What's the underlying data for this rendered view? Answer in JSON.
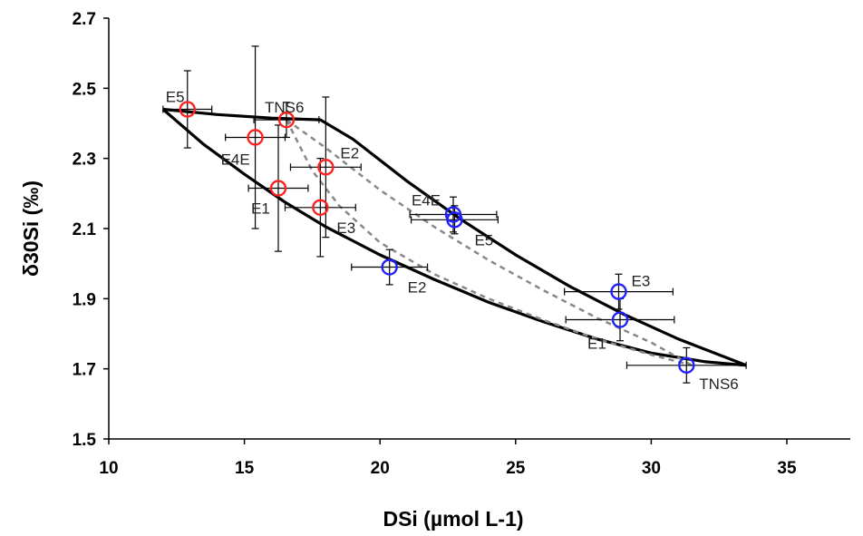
{
  "chart_data": {
    "type": "scatter",
    "xlabel": "DSi (µmol L-1)",
    "ylabel": "δ30Si (‰)",
    "xlim": [
      10,
      35
    ],
    "ylim": [
      1.5,
      2.7
    ],
    "xticks": [
      10,
      15,
      20,
      25,
      30,
      35
    ],
    "yticks": [
      1.5,
      1.7,
      1.9,
      2.1,
      2.3,
      2.5,
      2.7
    ],
    "grid": false,
    "series": [
      {
        "color": "#ff2020",
        "points": [
          {
            "label": "E5",
            "x": 12.9,
            "y": 2.44,
            "xerr": 0.9,
            "yerr": 0.11
          },
          {
            "label": "TNS6",
            "x": 16.55,
            "y": 2.41,
            "xerr": 1.2,
            "yerr": 0.05
          },
          {
            "label": "E4E",
            "x": 15.4,
            "y": 2.36,
            "xerr": 1.1,
            "yerr": 0.26
          },
          {
            "label": "E2",
            "x": 18.0,
            "y": 2.275,
            "xerr": 1.3,
            "yerr": 0.2
          },
          {
            "label": "E1",
            "x": 16.25,
            "y": 2.215,
            "xerr": 1.1,
            "yerr": 0.18
          },
          {
            "label": "E3",
            "x": 17.8,
            "y": 2.16,
            "xerr": 1.3,
            "yerr": 0.14
          }
        ]
      },
      {
        "color": "#2020ff",
        "points": [
          {
            "label": "E4E",
            "x": 22.7,
            "y": 2.14,
            "xerr": 1.6,
            "yerr": 0.05
          },
          {
            "label": "E5",
            "x": 22.75,
            "y": 2.125,
            "xerr": 1.6,
            "yerr": 0.04
          },
          {
            "label": "E2",
            "x": 20.35,
            "y": 1.99,
            "xerr": 1.4,
            "yerr": 0.05
          },
          {
            "label": "E3",
            "x": 28.8,
            "y": 1.92,
            "xerr": 2.0,
            "yerr": 0.05
          },
          {
            "label": "E1",
            "x": 28.85,
            "y": 1.84,
            "xerr": 2.0,
            "yerr": 0.06
          },
          {
            "label": "TNS6",
            "x": 31.3,
            "y": 1.71,
            "xerr": 2.2,
            "yerr": 0.05
          }
        ]
      }
    ],
    "curves": [
      {
        "style": "solid",
        "color": "#000000",
        "x": [
          12.0,
          13.5,
          15.0,
          16.5,
          18.0,
          20.0,
          22.0,
          24.0,
          26.0,
          28.0,
          30.0,
          32.0,
          33.5
        ],
        "y": [
          2.44,
          2.34,
          2.255,
          2.175,
          2.105,
          2.025,
          1.955,
          1.89,
          1.835,
          1.785,
          1.745,
          1.72,
          1.71
        ]
      },
      {
        "style": "solid",
        "color": "#000000",
        "x": [
          12.0,
          14.0,
          16.0,
          17.8,
          19.0,
          21.0,
          23.0,
          25.0,
          27.0,
          29.0,
          31.0,
          33.5
        ],
        "y": [
          2.44,
          2.425,
          2.415,
          2.41,
          2.355,
          2.235,
          2.125,
          2.025,
          1.935,
          1.855,
          1.785,
          1.71
        ]
      },
      {
        "style": "dashed",
        "color": "#888888",
        "x": [
          16.55,
          17.5,
          18.5,
          20.0,
          22.0,
          24.0,
          26.0,
          28.0,
          30.0,
          31.5
        ],
        "y": [
          2.41,
          2.265,
          2.165,
          2.06,
          1.97,
          1.9,
          1.84,
          1.785,
          1.74,
          1.71
        ]
      },
      {
        "style": "dashed",
        "color": "#888888",
        "x": [
          16.55,
          18.0,
          20.0,
          22.0,
          24.0,
          26.0,
          28.0,
          30.0,
          31.5
        ],
        "y": [
          2.41,
          2.33,
          2.21,
          2.105,
          2.01,
          1.925,
          1.845,
          1.775,
          1.71
        ]
      }
    ]
  }
}
